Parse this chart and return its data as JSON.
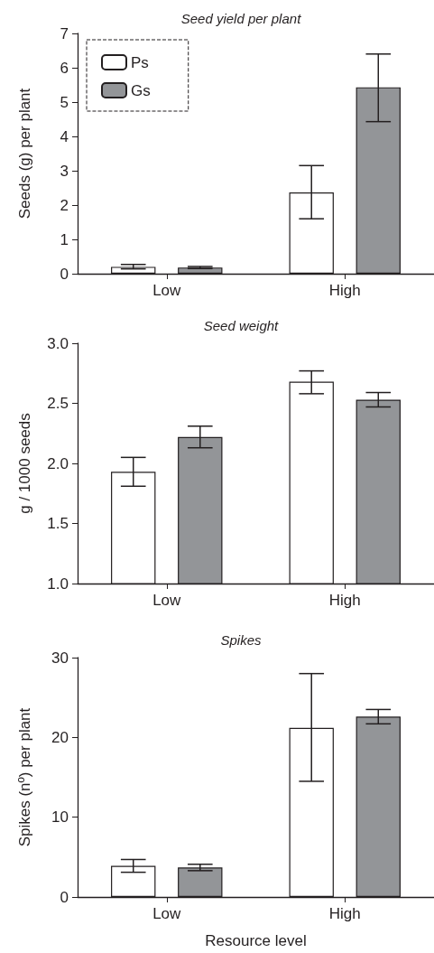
{
  "chart_data": [
    {
      "type": "bar",
      "title": "Seed yield per plant",
      "ylabel": "Seeds (g) per plant",
      "categories": [
        "Low",
        "High"
      ],
      "ylim": [
        0,
        7
      ],
      "yticks": [
        0,
        1,
        2,
        3,
        4,
        5,
        6,
        7
      ],
      "grid": false,
      "legend": "top left",
      "series": [
        {
          "name": "Ps",
          "color": "#ffffff",
          "values": [
            0.2,
            2.37
          ],
          "errors": [
            [
              0.14,
              0.27
            ],
            [
              1.6,
              3.15
            ]
          ]
        },
        {
          "name": "Gs",
          "color": "#939598",
          "values": [
            0.18,
            5.43
          ],
          "errors": [
            [
              0.15,
              0.21
            ],
            [
              4.43,
              6.4
            ]
          ]
        }
      ]
    },
    {
      "type": "bar",
      "title": "Seed weight",
      "ylabel": "g / 1000 seeds",
      "categories": [
        "Low",
        "High"
      ],
      "ylim": [
        1,
        3
      ],
      "yticks": [
        {
          "value": 1,
          "label": "1.0"
        },
        1.5,
        {
          "value": 2,
          "label": "2.0"
        },
        2.5,
        {
          "value": 3,
          "label": "3.0"
        }
      ],
      "grid": false,
      "series": [
        {
          "color": "#ffffff",
          "values": [
            1.93,
            2.68
          ],
          "errors": [
            [
              1.81,
              2.05
            ],
            [
              2.58,
              2.77
            ]
          ]
        },
        {
          "color": "#939598",
          "values": [
            2.22,
            2.53
          ],
          "errors": [
            [
              2.13,
              2.31
            ],
            [
              2.47,
              2.59
            ]
          ]
        }
      ]
    },
    {
      "type": "bar",
      "title": "Spikes",
      "ylabel": "Spikes (nº) per plant",
      "xlabel": "Resource level",
      "categories": [
        "Low",
        "High"
      ],
      "ylim": [
        0,
        30
      ],
      "yticks": [
        0,
        10,
        20,
        30
      ],
      "grid": false,
      "series": [
        {
          "color": "#ffffff",
          "values": [
            3.9,
            21.2
          ],
          "errors": [
            [
              3.1,
              4.7
            ],
            [
              14.5,
              28
            ]
          ]
        },
        {
          "color": "#939598",
          "values": [
            3.7,
            22.6
          ],
          "errors": [
            [
              3.3,
              4.1
            ],
            [
              21.7,
              23.5
            ]
          ]
        }
      ]
    }
  ]
}
